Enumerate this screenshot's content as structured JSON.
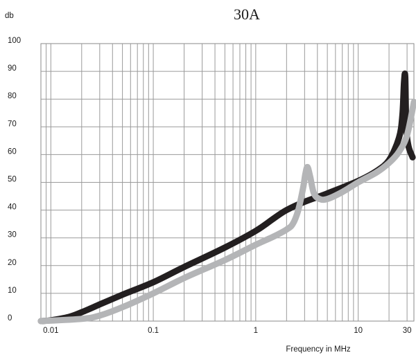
{
  "chart_data": {
    "type": "line",
    "title": "30A",
    "ylabel": "db",
    "xlabel": "Frequency in MHz",
    "x_scale": "log",
    "xlim": [
      0.008,
      35
    ],
    "ylim": [
      0,
      100
    ],
    "grid": true,
    "x_tick_labels": [
      {
        "value": 0.01,
        "label": "0.01"
      },
      {
        "value": 0.1,
        "label": "0.1"
      },
      {
        "value": 1,
        "label": "1"
      },
      {
        "value": 10,
        "label": "10"
      },
      {
        "value": 30,
        "label": "30"
      }
    ],
    "y_ticks": [
      0,
      10,
      20,
      30,
      40,
      50,
      60,
      70,
      80,
      90,
      100
    ],
    "series": [
      {
        "color": "#231f20",
        "points": [
          [
            0.008,
            0
          ],
          [
            0.01,
            0.3
          ],
          [
            0.015,
            1.5
          ],
          [
            0.02,
            3.2
          ],
          [
            0.03,
            6
          ],
          [
            0.05,
            9.5
          ],
          [
            0.1,
            14
          ],
          [
            0.2,
            19.5
          ],
          [
            0.5,
            26.5
          ],
          [
            1,
            32.5
          ],
          [
            1.5,
            37
          ],
          [
            2,
            40
          ],
          [
            3,
            43
          ],
          [
            5,
            46
          ],
          [
            10,
            50.5
          ],
          [
            15,
            54
          ],
          [
            20,
            58
          ],
          [
            25,
            66
          ],
          [
            27,
            74
          ],
          [
            28,
            86
          ],
          [
            28.8,
            88
          ],
          [
            29.5,
            70
          ],
          [
            31,
            63
          ],
          [
            34,
            59
          ]
        ]
      },
      {
        "color": "#b4b5b7",
        "points": [
          [
            0.008,
            0
          ],
          [
            0.02,
            0.8
          ],
          [
            0.03,
            2
          ],
          [
            0.05,
            5
          ],
          [
            0.1,
            10
          ],
          [
            0.2,
            15.5
          ],
          [
            0.5,
            22
          ],
          [
            1,
            27.5
          ],
          [
            1.5,
            30.5
          ],
          [
            2,
            33
          ],
          [
            2.3,
            35
          ],
          [
            2.6,
            40
          ],
          [
            2.9,
            48
          ],
          [
            3.05,
            53
          ],
          [
            3.2,
            55.5
          ],
          [
            3.4,
            52
          ],
          [
            3.7,
            46
          ],
          [
            4.2,
            44
          ],
          [
            5,
            44
          ],
          [
            7,
            46.5
          ],
          [
            10,
            50
          ],
          [
            15,
            53.5
          ],
          [
            20,
            57
          ],
          [
            25,
            61
          ],
          [
            30,
            67
          ],
          [
            35,
            79
          ]
        ]
      }
    ]
  }
}
